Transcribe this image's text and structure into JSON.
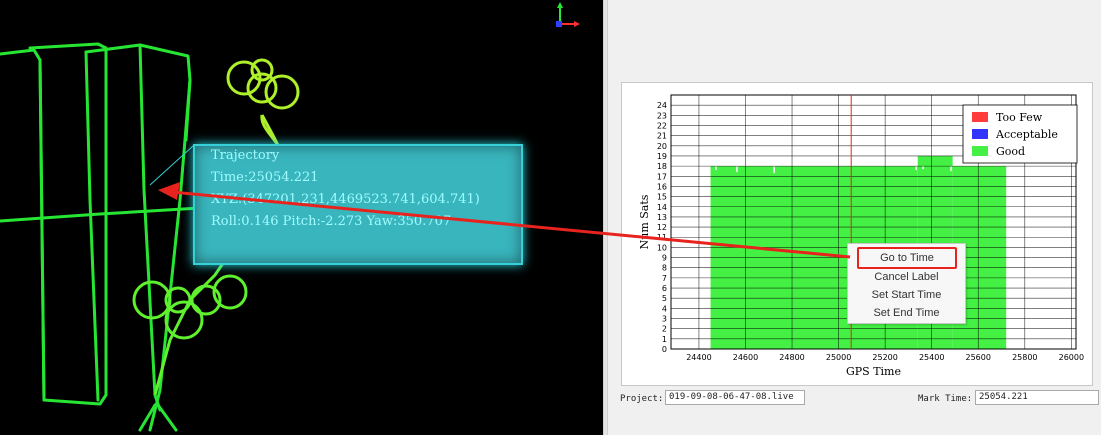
{
  "trajectory_label": {
    "title": "Trajectory",
    "time": "Time:25054.221",
    "xyz": "XYZ:(347201.231,4469523.741,604.741)",
    "attitude": "Roll:0.146 Pitch:-2.273 Yaw:350.707"
  },
  "context_menu": {
    "items": [
      "Go to Time",
      "Cancel Label",
      "Set Start Time",
      "Set End Time"
    ]
  },
  "bottom_bar": {
    "project_label": "Project:",
    "project_value": "019-09-08-06-47-08.live",
    "mark_time_label": "Mark Time:",
    "mark_time_value": "25054.221"
  },
  "colors": {
    "trajectory": "#27e633",
    "good": "#44f044",
    "too_few": "#ff3b3b",
    "acceptable": "#3333ff",
    "annotation": "#e8231e",
    "label_bg": "#39b5bd"
  },
  "icons": {
    "axis": "xyz-axis-gizmo-icon"
  },
  "chart_data": {
    "type": "bar",
    "xlabel": "GPS Time",
    "ylabel": "Num Sats",
    "xlim": [
      24280,
      26020
    ],
    "ylim": [
      0,
      25
    ],
    "x_ticks": [
      24400,
      24600,
      24800,
      25000,
      25200,
      25400,
      25600,
      25800,
      26000
    ],
    "y_ticks": [
      0,
      1,
      2,
      3,
      4,
      5,
      6,
      7,
      8,
      9,
      10,
      11,
      12,
      13,
      14,
      15,
      16,
      17,
      18,
      19,
      20,
      21,
      22,
      23,
      24
    ],
    "marker_time": 25054.221,
    "legend": [
      {
        "name": "Too Few",
        "color": "#ff3b3b"
      },
      {
        "name": "Acceptable",
        "color": "#3333ff"
      },
      {
        "name": "Good",
        "color": "#44f044"
      }
    ],
    "legend_position": "top-right",
    "grid": true,
    "series": [
      {
        "name": "Good",
        "segments": [
          {
            "x0": 24450,
            "x1": 25340,
            "value": 18
          },
          {
            "x0": 25340,
            "x1": 25490,
            "value": 19
          },
          {
            "x0": 25490,
            "x1": 25720,
            "value": 18
          }
        ]
      }
    ]
  }
}
